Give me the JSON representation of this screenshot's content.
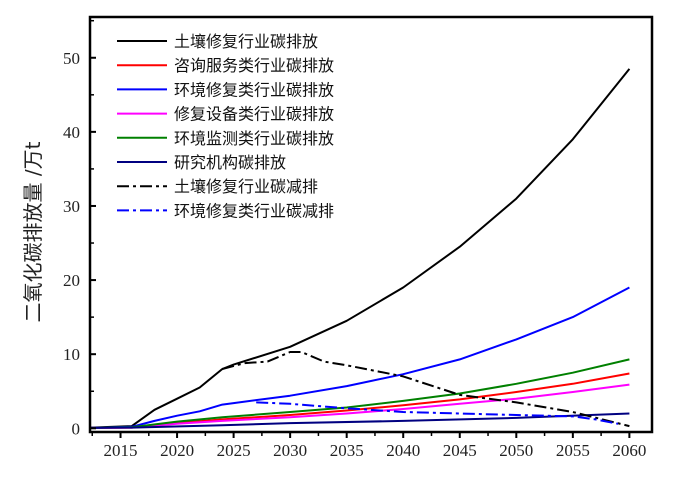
{
  "chart_data": {
    "type": "line",
    "title": "",
    "xlabel": "",
    "ylabel": "二氧化碳排放量 /万t",
    "xlim": [
      2012.3,
      2062
    ],
    "ylim": [
      -0.5,
      55.5
    ],
    "xticks": [
      2015,
      2020,
      2025,
      2030,
      2035,
      2040,
      2045,
      2050,
      2055,
      2060
    ],
    "yticks": [
      0,
      10,
      20,
      30,
      40,
      50
    ],
    "grid": false,
    "legend_position": "top-left",
    "series": [
      {
        "name": "土壤修复行业碳排放",
        "color": "#000000",
        "style": "solid",
        "x": [
          2012.3,
          2016,
          2018,
          2020,
          2022,
          2024,
          2025,
          2030,
          2035,
          2040,
          2045,
          2050,
          2055,
          2060
        ],
        "y": [
          0.1,
          0.3,
          2.5,
          4.0,
          5.5,
          8.0,
          8.6,
          11.0,
          14.5,
          19.0,
          24.5,
          31.0,
          39.0,
          48.5
        ]
      },
      {
        "name": "咨询服务类行业碳排放",
        "color": "#ff0000",
        "style": "solid",
        "x": [
          2012.3,
          2016,
          2020,
          2024,
          2030,
          2035,
          2040,
          2045,
          2050,
          2055,
          2060
        ],
        "y": [
          0.05,
          0.1,
          0.7,
          1.2,
          1.8,
          2.4,
          3.1,
          3.9,
          4.9,
          6.0,
          7.4
        ]
      },
      {
        "name": "环境修复类行业碳排放",
        "color": "#0000ff",
        "style": "solid",
        "x": [
          2012.3,
          2016,
          2018,
          2020,
          2022,
          2024,
          2025,
          2030,
          2035,
          2040,
          2045,
          2050,
          2055,
          2060
        ],
        "y": [
          0.05,
          0.2,
          1.0,
          1.7,
          2.3,
          3.2,
          3.4,
          4.4,
          5.7,
          7.3,
          9.3,
          12.0,
          15.0,
          19.0
        ]
      },
      {
        "name": "修复设备类行业碳排放",
        "color": "#ff00ff",
        "style": "solid",
        "x": [
          2012.3,
          2016,
          2020,
          2024,
          2030,
          2035,
          2040,
          2045,
          2050,
          2055,
          2060
        ],
        "y": [
          0.05,
          0.1,
          0.6,
          1.0,
          1.5,
          2.0,
          2.6,
          3.3,
          4.0,
          4.9,
          5.9
        ]
      },
      {
        "name": "环境监测类行业碳排放",
        "color": "#008000",
        "style": "solid",
        "x": [
          2012.3,
          2016,
          2020,
          2024,
          2030,
          2035,
          2040,
          2045,
          2050,
          2055,
          2060
        ],
        "y": [
          0.05,
          0.15,
          0.9,
          1.5,
          2.2,
          2.8,
          3.7,
          4.7,
          6.0,
          7.5,
          9.3
        ]
      },
      {
        "name": "研究机构碳排放",
        "color": "#000080",
        "style": "solid",
        "x": [
          2012.3,
          2016,
          2024,
          2030,
          2040,
          2050,
          2060
        ],
        "y": [
          0.05,
          0.1,
          0.4,
          0.7,
          1.0,
          1.4,
          2.0
        ]
      },
      {
        "name": "土壤修复行业碳减排",
        "color": "#000000",
        "style": "dashdot",
        "x": [
          2024,
          2026,
          2028,
          2030,
          2031,
          2033,
          2035,
          2040,
          2045,
          2050,
          2055,
          2060
        ],
        "y": [
          8.0,
          8.8,
          9.0,
          10.3,
          10.3,
          9.0,
          8.5,
          7.0,
          4.5,
          3.5,
          2.2,
          0.3
        ]
      },
      {
        "name": "环境修复类行业碳减排",
        "color": "#0000ff",
        "style": "dashdot",
        "x": [
          2027,
          2030,
          2035,
          2040,
          2045,
          2050,
          2055,
          2057,
          2059
        ],
        "y": [
          3.5,
          3.3,
          2.7,
          2.2,
          2.0,
          1.8,
          1.6,
          1.2,
          0.6
        ]
      }
    ]
  }
}
